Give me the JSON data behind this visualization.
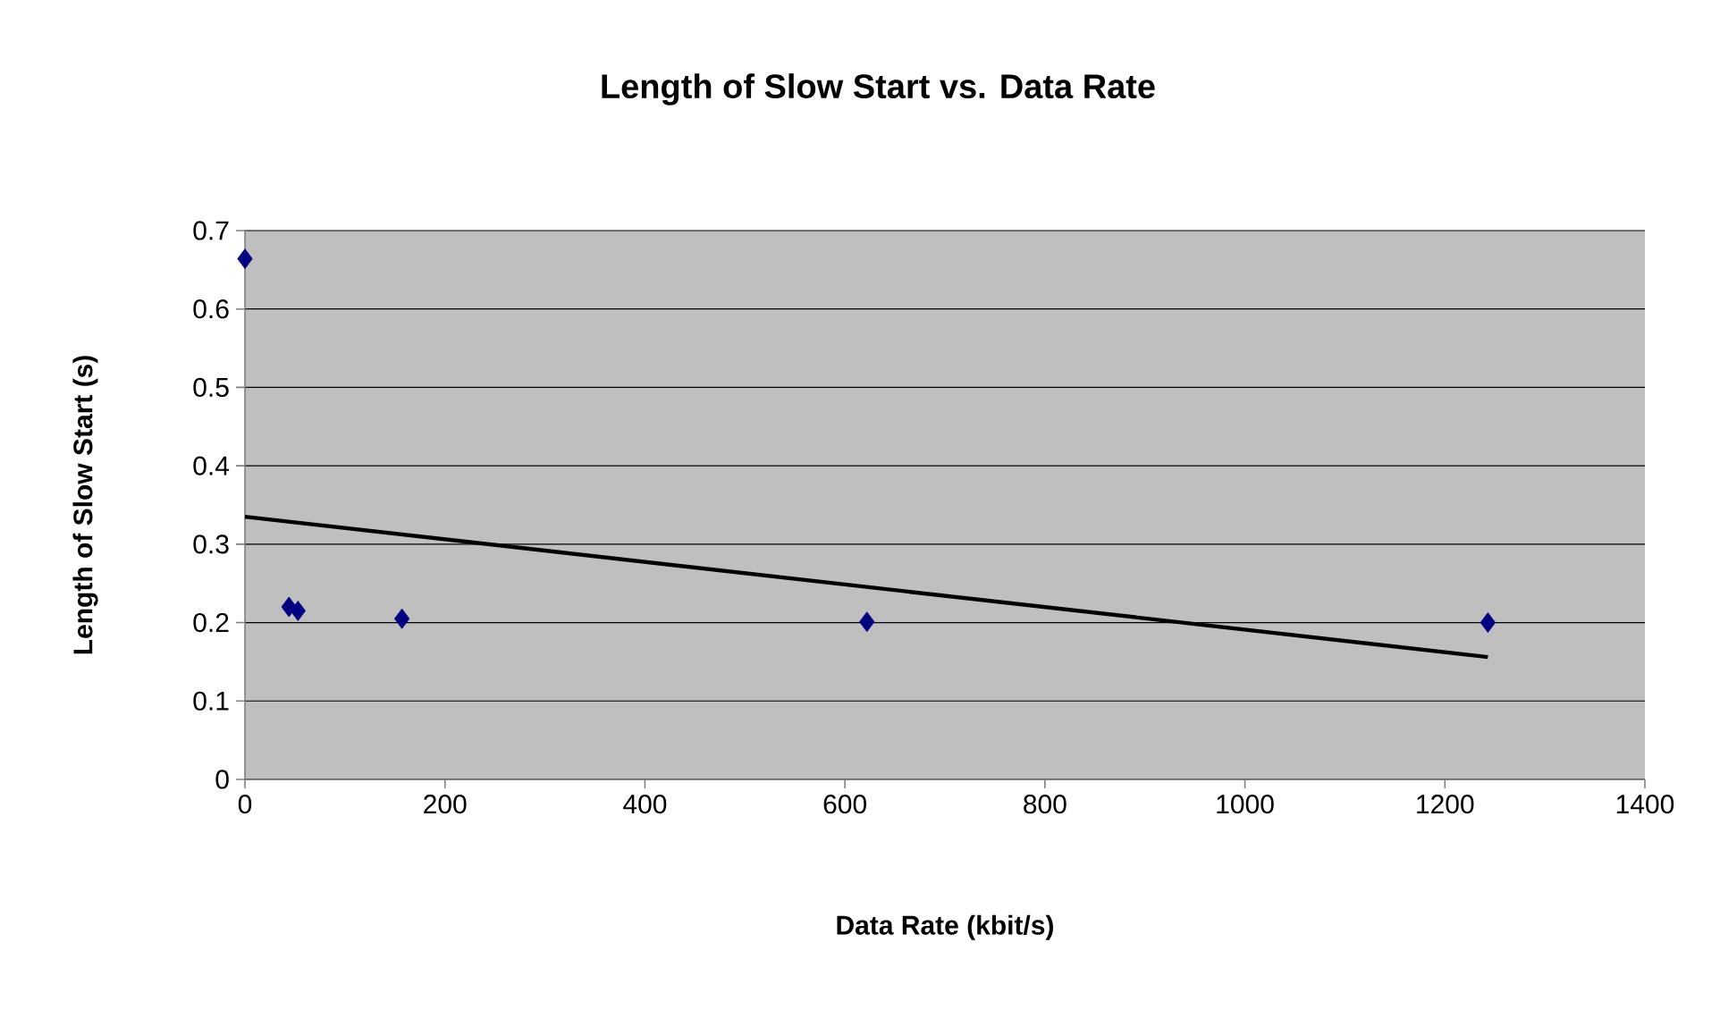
{
  "chart_data": {
    "type": "scatter",
    "title": "Length of Slow Start vs. Data Rate",
    "xlabel": "Data Rate (kbit/s)",
    "ylabel": "Length of Slow Start (s)",
    "series": [
      {
        "color": "#000080",
        "marker": "diamond",
        "x": [
          0,
          44,
          53,
          157,
          622,
          1243
        ],
        "values": [
          0.664,
          0.22,
          0.215,
          0.205,
          0.201,
          0.2
        ]
      },
      {
        "type": "line",
        "color": "#000000",
        "marker": "none",
        "x": [
          0,
          1243
        ],
        "values": [
          0.335,
          0.156
        ]
      }
    ],
    "xlim": [
      0,
      1400
    ],
    "xticks": [
      0,
      200,
      400,
      600,
      800,
      1000,
      1200,
      1400
    ],
    "ylim": [
      0,
      0.7
    ],
    "yticks": [
      0,
      0.1,
      0.2,
      0.3,
      0.4,
      0.5,
      0.6,
      0.7
    ],
    "grid": "y",
    "legend": false
  }
}
